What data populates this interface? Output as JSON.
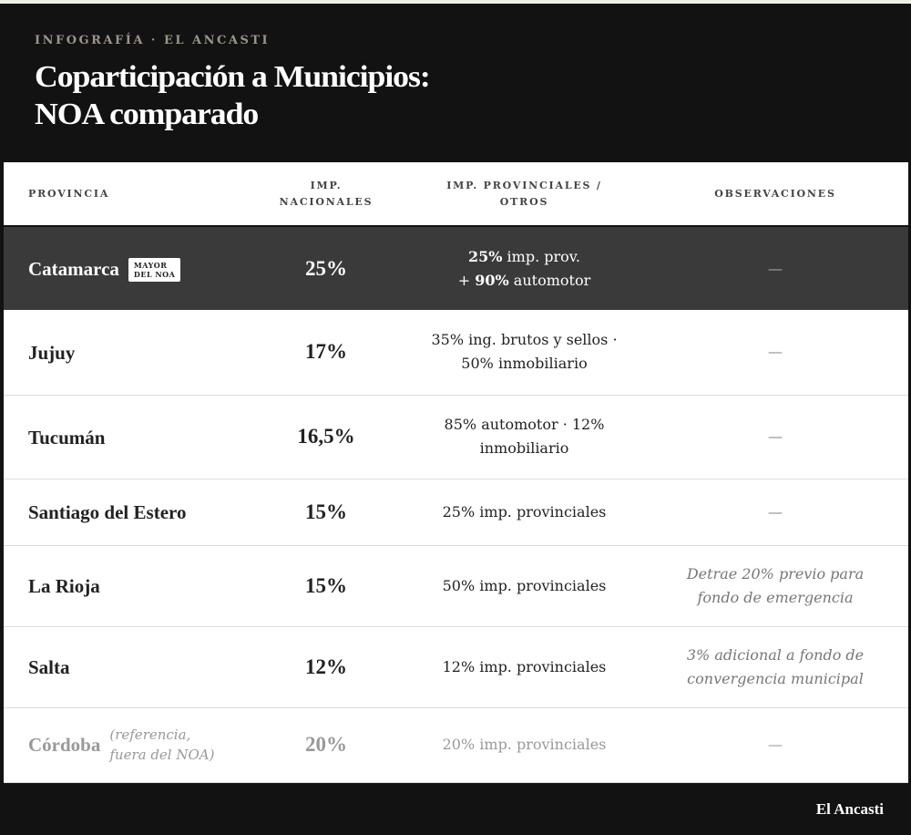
{
  "header": {
    "kicker": "INFOGRAFÍA · EL ANCASTI",
    "title_line1": "Coparticipación a Municipios:",
    "title_line2": "NOA comparado"
  },
  "table": {
    "columns": [
      "PROVINCIA",
      "IMP. NACIONALES",
      "IMP. PROVINCIALES / OTROS",
      "OBSERVACIONES"
    ],
    "rows": [
      {
        "provincia": "Catamarca",
        "badge": "MAYOR DEL NOA",
        "nacionales": "25%",
        "provinciales": "25% imp. prov. + 90% automotor",
        "observaciones": "—",
        "highlight": true
      },
      {
        "provincia": "Jujuy",
        "nacionales": "17%",
        "provinciales": "35% ing. brutos y sellos · 50% inmobiliario",
        "observaciones": "—"
      },
      {
        "provincia": "Tucumán",
        "nacionales": "16,5%",
        "provinciales": "85% automotor · 12% inmobiliario",
        "observaciones": "—"
      },
      {
        "provincia": "Santiago del Estero",
        "nacionales": "15%",
        "provinciales": "25% imp. provinciales",
        "observaciones": "—"
      },
      {
        "provincia": "La Rioja",
        "nacionales": "15%",
        "provinciales": "50% imp. provinciales",
        "observaciones": "Detrae 20% previo para fondo de emergencia"
      },
      {
        "provincia": "Salta",
        "nacionales": "12%",
        "provinciales": "12% imp. provinciales",
        "observaciones": "3% adicional a fondo de convergencia municipal"
      },
      {
        "provincia": "Córdoba",
        "note": "(referencia, fuera del NOA)",
        "nacionales": "20%",
        "provinciales": "20% imp. provinciales",
        "observaciones": "—",
        "reference": true
      }
    ]
  },
  "colors": {
    "frame": "#121212",
    "highlight_row": "#3a3a3a",
    "reference_text": "#999999"
  },
  "footer": {
    "brand": "El Ancasti"
  }
}
